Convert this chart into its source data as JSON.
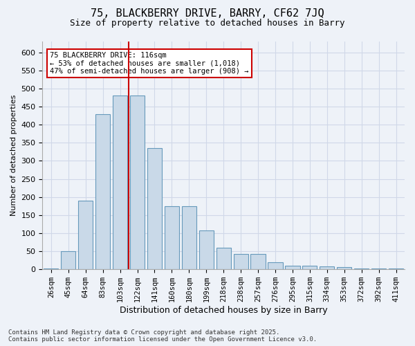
{
  "title_line1": "75, BLACKBERRY DRIVE, BARRY, CF62 7JQ",
  "title_line2": "Size of property relative to detached houses in Barry",
  "xlabel": "Distribution of detached houses by size in Barry",
  "ylabel": "Number of detached properties",
  "categories": [
    "26sqm",
    "45sqm",
    "64sqm",
    "83sqm",
    "103sqm",
    "122sqm",
    "141sqm",
    "160sqm",
    "180sqm",
    "199sqm",
    "218sqm",
    "238sqm",
    "257sqm",
    "276sqm",
    "295sqm",
    "315sqm",
    "334sqm",
    "353sqm",
    "372sqm",
    "392sqm",
    "411sqm"
  ],
  "values": [
    3,
    50,
    190,
    430,
    480,
    480,
    335,
    175,
    175,
    108,
    60,
    42,
    42,
    20,
    10,
    10,
    8,
    7,
    3,
    2,
    3
  ],
  "bar_color": "#c9d9e8",
  "bar_edge_color": "#6699bb",
  "grid_color": "#d0d8e8",
  "bg_color": "#eef2f8",
  "vline_x": 4.5,
  "vline_color": "#cc0000",
  "annotation_title": "75 BLACKBERRY DRIVE: 116sqm",
  "annotation_line2": "← 53% of detached houses are smaller (1,018)",
  "annotation_line3": "47% of semi-detached houses are larger (908) →",
  "annotation_box_color": "#ffffff",
  "annotation_box_edge": "#cc0000",
  "footer": "Contains HM Land Registry data © Crown copyright and database right 2025.\nContains public sector information licensed under the Open Government Licence v3.0.",
  "ylim": [
    0,
    630
  ],
  "yticks": [
    0,
    50,
    100,
    150,
    200,
    250,
    300,
    350,
    400,
    450,
    500,
    550,
    600
  ]
}
